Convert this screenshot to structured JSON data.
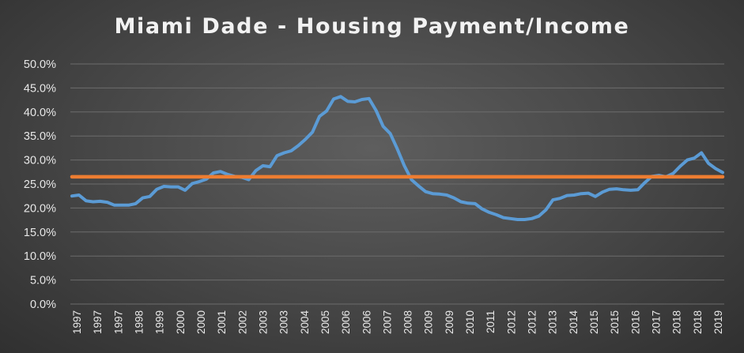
{
  "chart_data": {
    "type": "line",
    "title": "Miami Dade - Housing Payment/Income",
    "xlabel": "",
    "ylabel": "",
    "ylim": [
      0,
      50
    ],
    "yticks": [
      "0.0%",
      "5.0%",
      "10.0%",
      "15.0%",
      "20.0%",
      "25.0%",
      "30.0%",
      "35.0%",
      "40.0%",
      "45.0%",
      "50.0%"
    ],
    "xtick_labels": [
      "1997",
      "1997",
      "1997",
      "1998",
      "1999",
      "2000",
      "2000",
      "2001",
      "2002",
      "2003",
      "2003",
      "2004",
      "2005",
      "2006",
      "2006",
      "2007",
      "2008",
      "2009",
      "2009",
      "2010",
      "2011",
      "2012",
      "2012",
      "2013",
      "2014",
      "2015",
      "2015",
      "2016",
      "2017",
      "2018",
      "2018",
      "2019"
    ],
    "grid": true,
    "legend": "none",
    "colors": {
      "series": "#5b9bd5",
      "average": "#ed7d31"
    },
    "series": [
      {
        "values": [
          22.5,
          22.7,
          21.5,
          21.3,
          21.4,
          21.2,
          20.6,
          20.6,
          20.6,
          20.9,
          22.1,
          22.4,
          23.9,
          24.5,
          24.4,
          24.4,
          23.7,
          25.1,
          25.5,
          26.0,
          27.3,
          27.6,
          27.0,
          26.6,
          26.4,
          25.9,
          27.8,
          28.8,
          28.6,
          30.9,
          31.5,
          31.9,
          33.0,
          34.3,
          35.8,
          39.1,
          40.2,
          42.7,
          43.2,
          42.2,
          42.1,
          42.6,
          42.8,
          40.3,
          37.0,
          35.5,
          32.3,
          28.8,
          25.9,
          24.6,
          23.4,
          23.0,
          22.9,
          22.7,
          22.1,
          21.3,
          21.0,
          20.9,
          19.8,
          19.1,
          18.6,
          18.0,
          17.8,
          17.6,
          17.6,
          17.8,
          18.3,
          19.6,
          21.7,
          22.0,
          22.6,
          22.7,
          23.0,
          23.1,
          22.4,
          23.3,
          23.9,
          24.0,
          23.8,
          23.7,
          23.8,
          25.3,
          26.6,
          26.8,
          26.5,
          27.2,
          28.7,
          30.0,
          30.4,
          31.5,
          29.3,
          28.2,
          27.4
        ]
      },
      {
        "values": [
          26.5,
          26.5
        ]
      }
    ]
  }
}
